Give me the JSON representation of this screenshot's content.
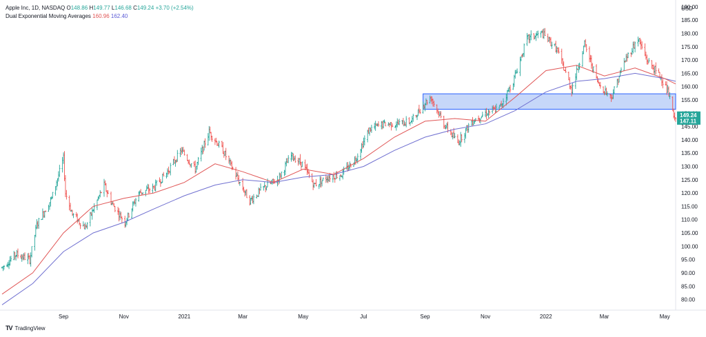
{
  "legend": {
    "symbol": "Apple Inc, 1D, NASDAQ",
    "open_label": "O",
    "open": "148.86",
    "high_label": "H",
    "high": "149.77",
    "low_label": "L",
    "low": "146.68",
    "close_label": "C",
    "close": "149.24",
    "change": "+3.70 (+2.54%)",
    "indicator": "Dual Exponential Moving Averages",
    "ema_fast": "160.96",
    "ema_slow": "162.40"
  },
  "brand": {
    "name": "TradingView",
    "logo": "TV"
  },
  "chart_data": {
    "type": "ohlc",
    "y_axis": {
      "unit_label": "USD",
      "ticks": [
        80,
        85,
        90,
        95,
        100,
        105,
        110,
        115,
        120,
        125,
        130,
        135,
        140,
        145,
        150,
        155,
        160,
        165,
        170,
        175,
        180,
        185,
        190
      ],
      "range": [
        76,
        191
      ],
      "position": "right"
    },
    "x_axis": {
      "start": "2020-07-01",
      "end": "2022-05-12",
      "ticks": [
        {
          "label": "Sep",
          "date": "2020-09-01"
        },
        {
          "label": "Nov",
          "date": "2020-11-01"
        },
        {
          "label": "2021",
          "date": "2021-01-01"
        },
        {
          "label": "Mar",
          "date": "2021-03-01"
        },
        {
          "label": "May",
          "date": "2021-05-01"
        },
        {
          "label": "Jul",
          "date": "2021-07-01"
        },
        {
          "label": "Sep",
          "date": "2021-09-01"
        },
        {
          "label": "Nov",
          "date": "2021-11-01"
        },
        {
          "label": "2022",
          "date": "2022-01-01"
        },
        {
          "label": "Mar",
          "date": "2022-03-01"
        },
        {
          "label": "May",
          "date": "2022-05-01"
        }
      ]
    },
    "price_path": [
      [
        "2020-07-01",
        92
      ],
      [
        "2020-07-15",
        97
      ],
      [
        "2020-07-29",
        95
      ],
      [
        "2020-08-05",
        108
      ],
      [
        "2020-08-20",
        118
      ],
      [
        "2020-09-01",
        133
      ],
      [
        "2020-09-03",
        120
      ],
      [
        "2020-09-10",
        112
      ],
      [
        "2020-09-23",
        107
      ],
      [
        "2020-10-12",
        123
      ],
      [
        "2020-10-20",
        116
      ],
      [
        "2020-11-02",
        109
      ],
      [
        "2020-11-16",
        120
      ],
      [
        "2020-12-01",
        122
      ],
      [
        "2020-12-15",
        128
      ],
      [
        "2020-12-29",
        136
      ],
      [
        "2021-01-12",
        129
      ],
      [
        "2021-01-26",
        143
      ],
      [
        "2021-02-09",
        136
      ],
      [
        "2021-02-23",
        126
      ],
      [
        "2021-03-08",
        117
      ],
      [
        "2021-03-22",
        122
      ],
      [
        "2021-04-05",
        125
      ],
      [
        "2021-04-19",
        134
      ],
      [
        "2021-04-30",
        131
      ],
      [
        "2021-05-12",
        123
      ],
      [
        "2021-05-26",
        126
      ],
      [
        "2021-06-09",
        127
      ],
      [
        "2021-06-23",
        133
      ],
      [
        "2021-07-07",
        144
      ],
      [
        "2021-07-21",
        146
      ],
      [
        "2021-08-04",
        146
      ],
      [
        "2021-08-18",
        147
      ],
      [
        "2021-09-01",
        154
      ],
      [
        "2021-09-07",
        156
      ],
      [
        "2021-09-20",
        146
      ],
      [
        "2021-10-04",
        139
      ],
      [
        "2021-10-18",
        147
      ],
      [
        "2021-11-01",
        150
      ],
      [
        "2021-11-15",
        152
      ],
      [
        "2021-11-29",
        162
      ],
      [
        "2021-12-13",
        178
      ],
      [
        "2021-12-28",
        180
      ],
      [
        "2022-01-05",
        177
      ],
      [
        "2022-01-12",
        174
      ],
      [
        "2022-01-27",
        159
      ],
      [
        "2022-02-09",
        176
      ],
      [
        "2022-02-23",
        161
      ],
      [
        "2022-03-08",
        156
      ],
      [
        "2022-03-22",
        170
      ],
      [
        "2022-04-04",
        178
      ],
      [
        "2022-04-13",
        170
      ],
      [
        "2022-04-28",
        163
      ],
      [
        "2022-05-05",
        157
      ],
      [
        "2022-05-11",
        147
      ],
      [
        "2022-05-12",
        149
      ]
    ],
    "ema_fast": {
      "name": "Dual Exponential Moving Averages",
      "color": "#e05555",
      "points": [
        [
          "2020-07-01",
          82
        ],
        [
          "2020-08-01",
          90
        ],
        [
          "2020-09-01",
          105
        ],
        [
          "2020-10-01",
          115
        ],
        [
          "2020-11-01",
          118
        ],
        [
          "2020-12-01",
          120
        ],
        [
          "2021-01-01",
          124
        ],
        [
          "2021-02-01",
          131
        ],
        [
          "2021-03-01",
          128
        ],
        [
          "2021-04-01",
          124
        ],
        [
          "2021-05-01",
          129
        ],
        [
          "2021-06-01",
          127
        ],
        [
          "2021-07-01",
          133
        ],
        [
          "2021-08-01",
          141
        ],
        [
          "2021-09-01",
          147
        ],
        [
          "2021-10-01",
          148
        ],
        [
          "2021-11-01",
          147
        ],
        [
          "2021-12-01",
          156
        ],
        [
          "2022-01-01",
          166
        ],
        [
          "2022-02-01",
          168
        ],
        [
          "2022-03-01",
          164
        ],
        [
          "2022-04-01",
          167
        ],
        [
          "2022-05-01",
          163
        ],
        [
          "2022-05-12",
          161
        ]
      ]
    },
    "ema_slow": {
      "name": "Dual Exponential Moving Averages",
      "color": "#6f6fd0",
      "points": [
        [
          "2020-07-01",
          78
        ],
        [
          "2020-08-01",
          86
        ],
        [
          "2020-09-01",
          98
        ],
        [
          "2020-10-01",
          105
        ],
        [
          "2020-11-01",
          109
        ],
        [
          "2020-12-01",
          114
        ],
        [
          "2021-01-01",
          119
        ],
        [
          "2021-02-01",
          123
        ],
        [
          "2021-03-01",
          125
        ],
        [
          "2021-04-01",
          124
        ],
        [
          "2021-05-01",
          126
        ],
        [
          "2021-06-01",
          127
        ],
        [
          "2021-07-01",
          130
        ],
        [
          "2021-08-01",
          136
        ],
        [
          "2021-09-01",
          141
        ],
        [
          "2021-10-01",
          144
        ],
        [
          "2021-11-01",
          146
        ],
        [
          "2021-12-01",
          151
        ],
        [
          "2022-01-01",
          158
        ],
        [
          "2022-02-01",
          162
        ],
        [
          "2022-03-01",
          163
        ],
        [
          "2022-04-01",
          165
        ],
        [
          "2022-05-01",
          163
        ],
        [
          "2022-05-12",
          162
        ]
      ]
    },
    "zone": {
      "start": "2021-08-30",
      "end": "2022-05-12",
      "low": 151.5,
      "high": 157.3,
      "color": "#b3c9f7"
    },
    "price_labels": [
      {
        "value": 149.24,
        "text": "149.24",
        "color": "#26a69a"
      },
      {
        "value": 147.11,
        "text": "147.11",
        "color": "#26a69a"
      }
    ],
    "up_color": "#26a69a",
    "down_color": "#ef5350",
    "grid": false,
    "legend_position": "top-left"
  }
}
